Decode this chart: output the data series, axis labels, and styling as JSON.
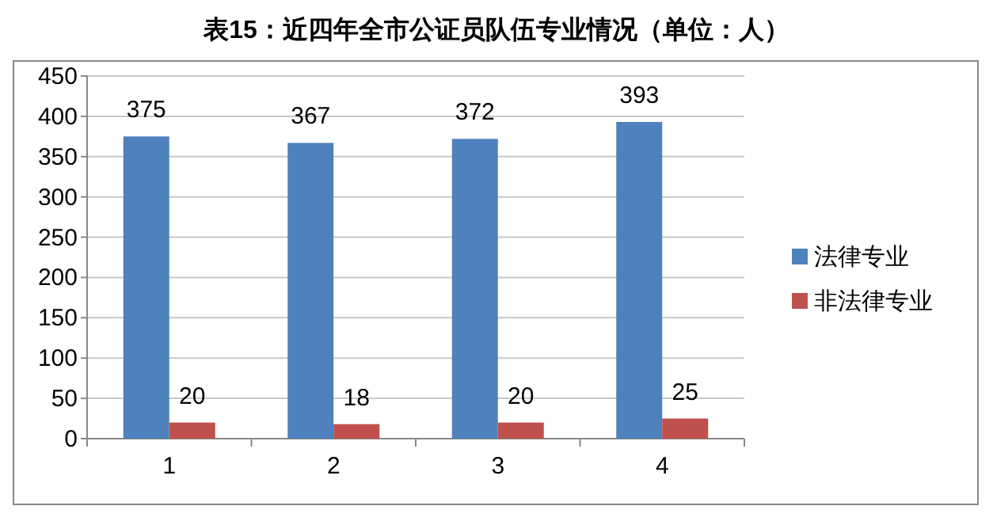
{
  "chart_data": {
    "type": "bar",
    "title": "表15：近四年全市公证员队伍专业情况（单位：人）",
    "categories": [
      "1",
      "2",
      "3",
      "4"
    ],
    "series": [
      {
        "name": "法律专业",
        "color": "#4f81bd",
        "values": [
          375,
          367,
          372,
          393
        ]
      },
      {
        "name": "非法律专业",
        "color": "#c0504d",
        "values": [
          20,
          18,
          20,
          25
        ]
      }
    ],
    "ylim": [
      0,
      450
    ],
    "yticks": [
      0,
      50,
      100,
      150,
      200,
      250,
      300,
      350,
      400,
      450
    ],
    "grid": "y",
    "legend": "right",
    "data_labels": true
  }
}
